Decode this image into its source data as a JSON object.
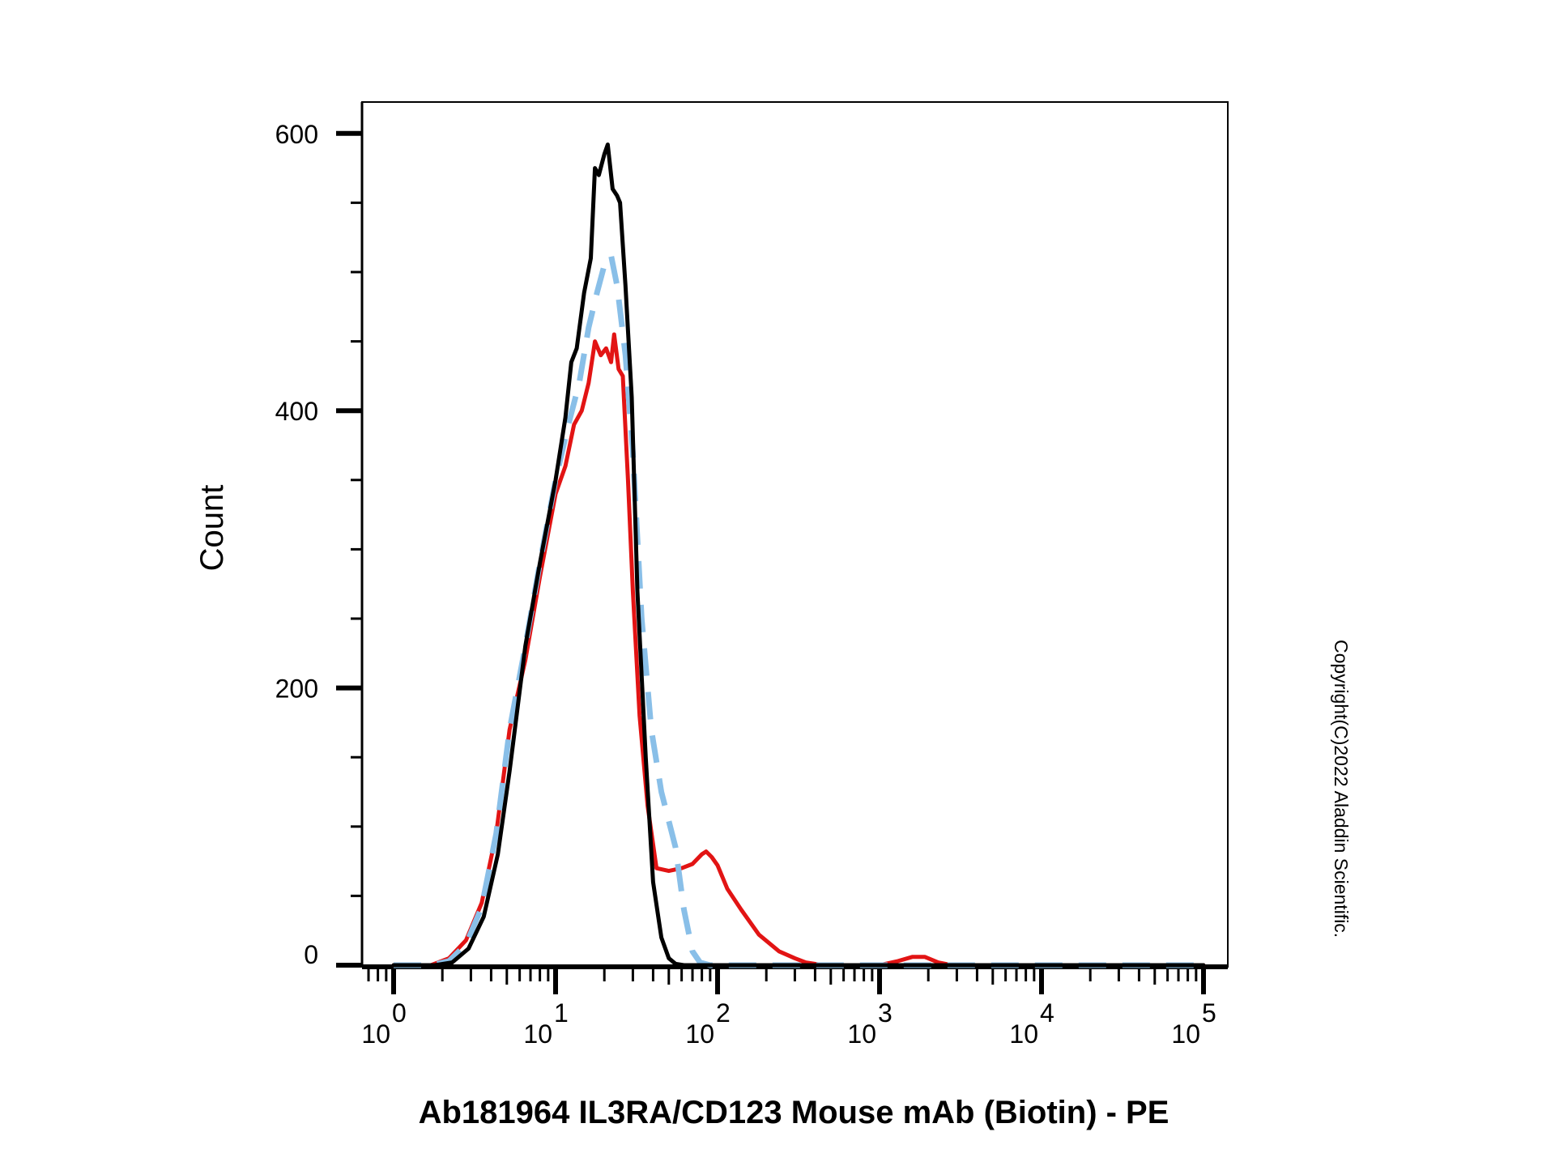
{
  "chart_data": {
    "type": "line",
    "xlabel": "Ab181964 IL3RA/CD123 Mouse mAb (Biotin) - PE",
    "ylabel": "Count",
    "x_scale": "log",
    "x_ticks": [
      {
        "value": 1,
        "base": "10",
        "exp": "0"
      },
      {
        "value": 10,
        "base": "10",
        "exp": "1"
      },
      {
        "value": 100,
        "base": "10",
        "exp": "2"
      },
      {
        "value": 1000,
        "base": "10",
        "exp": "3"
      },
      {
        "value": 10000,
        "base": "10",
        "exp": "4"
      },
      {
        "value": 100000,
        "base": "10",
        "exp": "5"
      }
    ],
    "y_ticks": [
      "0",
      "200",
      "400",
      "600"
    ],
    "ylim": [
      0,
      622
    ],
    "grid": false,
    "series": [
      {
        "color": "#e21414",
        "style": "solid",
        "points": [
          [
            1,
            0
          ],
          [
            1.7,
            0
          ],
          [
            2.2,
            5
          ],
          [
            2.8,
            18
          ],
          [
            3.5,
            45
          ],
          [
            4.3,
            95
          ],
          [
            5.2,
            170
          ],
          [
            6.5,
            220
          ],
          [
            8,
            280
          ],
          [
            10,
            340
          ],
          [
            11.5,
            360
          ],
          [
            13,
            390
          ],
          [
            14.5,
            400
          ],
          [
            16,
            420
          ],
          [
            17.5,
            450
          ],
          [
            19,
            440
          ],
          [
            20.5,
            445
          ],
          [
            22,
            435
          ],
          [
            23,
            455
          ],
          [
            24.5,
            430
          ],
          [
            26,
            425
          ],
          [
            28,
            350
          ],
          [
            30,
            270
          ],
          [
            33,
            180
          ],
          [
            37,
            115
          ],
          [
            42,
            70
          ],
          [
            50,
            68
          ],
          [
            60,
            70
          ],
          [
            70,
            73
          ],
          [
            80,
            80
          ],
          [
            85,
            82
          ],
          [
            92,
            78
          ],
          [
            100,
            72
          ],
          [
            115,
            55
          ],
          [
            140,
            40
          ],
          [
            180,
            22
          ],
          [
            240,
            10
          ],
          [
            300,
            5
          ],
          [
            350,
            2
          ],
          [
            450,
            0
          ],
          [
            1000,
            0
          ],
          [
            1300,
            3
          ],
          [
            1600,
            6
          ],
          [
            1900,
            6
          ],
          [
            2300,
            2
          ],
          [
            2800,
            0
          ],
          [
            100000,
            0
          ]
        ]
      },
      {
        "color": "#89bfe8",
        "style": "dashed",
        "points": [
          [
            1,
            0
          ],
          [
            1.7,
            0
          ],
          [
            2.2,
            3
          ],
          [
            2.8,
            15
          ],
          [
            3.5,
            42
          ],
          [
            4.3,
            95
          ],
          [
            5.2,
            170
          ],
          [
            6.5,
            230
          ],
          [
            8,
            290
          ],
          [
            10,
            350
          ],
          [
            12,
            390
          ],
          [
            14,
            420
          ],
          [
            16,
            460
          ],
          [
            18,
            485
          ],
          [
            20,
            505
          ],
          [
            22,
            512
          ],
          [
            24,
            490
          ],
          [
            27,
            440
          ],
          [
            30,
            370
          ],
          [
            34,
            250
          ],
          [
            39,
            170
          ],
          [
            45,
            125
          ],
          [
            55,
            85
          ],
          [
            62,
            40
          ],
          [
            70,
            10
          ],
          [
            78,
            2
          ],
          [
            90,
            0
          ],
          [
            120,
            0
          ],
          [
            100000,
            0
          ]
        ]
      },
      {
        "color": "#000000",
        "style": "solid",
        "points": [
          [
            1,
            0
          ],
          [
            1.8,
            0
          ],
          [
            2.3,
            2
          ],
          [
            2.9,
            12
          ],
          [
            3.6,
            35
          ],
          [
            4.4,
            80
          ],
          [
            5.2,
            140
          ],
          [
            6.5,
            230
          ],
          [
            8,
            290
          ],
          [
            10,
            350
          ],
          [
            11.5,
            395
          ],
          [
            12.5,
            435
          ],
          [
            13.5,
            445
          ],
          [
            15,
            485
          ],
          [
            16.5,
            510
          ],
          [
            17.5,
            575
          ],
          [
            18.5,
            570
          ],
          [
            20,
            585
          ],
          [
            21,
            592
          ],
          [
            22.5,
            560
          ],
          [
            24,
            555
          ],
          [
            25,
            550
          ],
          [
            27,
            490
          ],
          [
            29.5,
            410
          ],
          [
            32,
            270
          ],
          [
            36,
            150
          ],
          [
            40,
            60
          ],
          [
            45,
            20
          ],
          [
            50,
            5
          ],
          [
            55,
            1
          ],
          [
            62,
            0
          ],
          [
            100000,
            0
          ]
        ]
      }
    ]
  },
  "copyright": "Copyright(C)2022 Aladdin Scientific."
}
